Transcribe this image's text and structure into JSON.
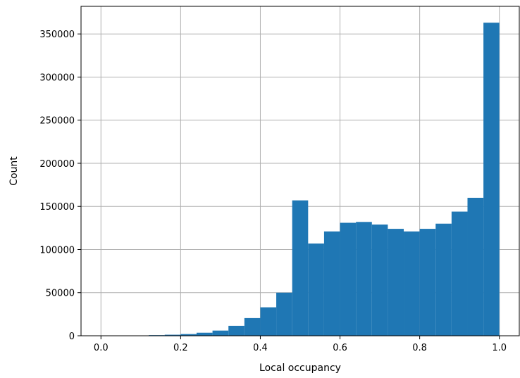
{
  "chart_data": {
    "type": "bar",
    "title": "",
    "xlabel": "Local occupancy",
    "ylabel": "Count",
    "xlim": [
      -0.05,
      1.05
    ],
    "ylim": [
      0,
      382000
    ],
    "grid": true,
    "bar_color": "#1f77b4",
    "grid_color": "#b0b0b0",
    "x_ticks": [
      0.0,
      0.2,
      0.4,
      0.6,
      0.8,
      1.0
    ],
    "x_tick_labels": [
      "0.0",
      "0.2",
      "0.4",
      "0.6",
      "0.8",
      "1.0"
    ],
    "y_ticks": [
      0,
      50000,
      100000,
      150000,
      200000,
      250000,
      300000,
      350000
    ],
    "y_tick_labels": [
      "0",
      "50000",
      "100000",
      "150000",
      "200000",
      "250000",
      "300000",
      "350000"
    ],
    "bin_edges": [
      0.0,
      0.04,
      0.08,
      0.12,
      0.16,
      0.2,
      0.24,
      0.28,
      0.32,
      0.36,
      0.4,
      0.44,
      0.48,
      0.52,
      0.56,
      0.6,
      0.64,
      0.68,
      0.72,
      0.76,
      0.8,
      0.84,
      0.88,
      0.92,
      0.96,
      1.0
    ],
    "values": [
      100,
      200,
      400,
      700,
      1200,
      2000,
      3500,
      6000,
      11500,
      20500,
      33000,
      50000,
      157000,
      107000,
      121000,
      131000,
      132000,
      129000,
      124000,
      121000,
      124000,
      130000,
      144000,
      160000,
      363000
    ]
  }
}
